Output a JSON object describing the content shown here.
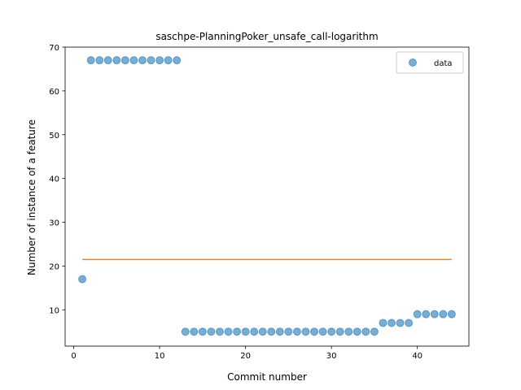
{
  "chart_data": {
    "type": "scatter",
    "title": "saschpe-PlanningPoker_unsafe_call-logarithm",
    "xlabel": "Commit number",
    "ylabel": "Number of instance of a feature",
    "xlim": [
      -1,
      46
    ],
    "ylim": [
      1.7,
      70
    ],
    "xticks": [
      0,
      10,
      20,
      30,
      40
    ],
    "yticks": [
      10,
      20,
      30,
      40,
      50,
      60,
      70
    ],
    "legend_position": "top-right",
    "series": [
      {
        "name": "data",
        "kind": "scatter",
        "color": "#1f77b4",
        "x": [
          1,
          2,
          3,
          4,
          5,
          6,
          7,
          8,
          9,
          10,
          11,
          12,
          13,
          14,
          15,
          16,
          17,
          18,
          19,
          20,
          21,
          22,
          23,
          24,
          25,
          26,
          27,
          28,
          29,
          30,
          31,
          32,
          33,
          34,
          35,
          36,
          37,
          38,
          39,
          40,
          41,
          42,
          43,
          44
        ],
        "y": [
          17,
          67,
          67,
          67,
          67,
          67,
          67,
          67,
          67,
          67,
          67,
          67,
          5,
          5,
          5,
          5,
          5,
          5,
          5,
          5,
          5,
          5,
          5,
          5,
          5,
          5,
          5,
          5,
          5,
          5,
          5,
          5,
          5,
          5,
          5,
          7,
          7,
          7,
          7,
          9,
          9,
          9,
          9,
          9
        ]
      },
      {
        "kind": "line",
        "color": "#ff7f0e",
        "x": [
          1,
          44
        ],
        "y": [
          21.5,
          21.5
        ]
      }
    ]
  }
}
